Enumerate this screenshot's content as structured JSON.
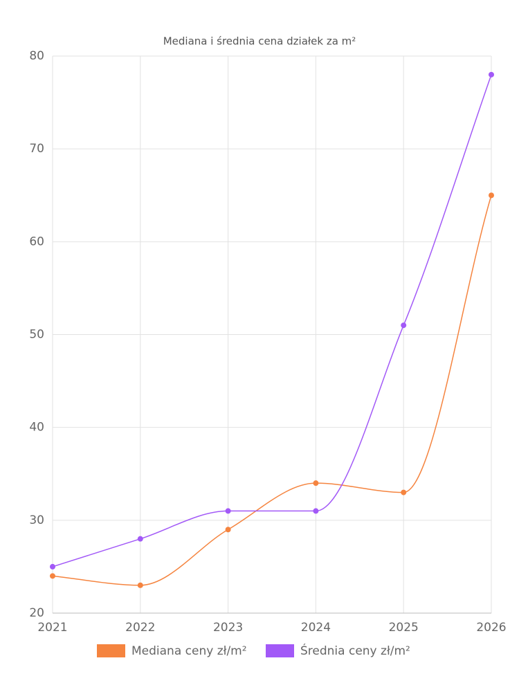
{
  "chart_data": {
    "type": "line",
    "title": "Mediana i średnia cena działek za m²",
    "categories": [
      "2021",
      "2022",
      "2023",
      "2024",
      "2025",
      "2026"
    ],
    "series": [
      {
        "name": "Mediana ceny zł/m²",
        "color": "#f5843f",
        "values": [
          24,
          23,
          29,
          34,
          33,
          65
        ]
      },
      {
        "name": "Średnia ceny zł/m²",
        "color": "#a259f7",
        "values": [
          25,
          28,
          31,
          31,
          51,
          78
        ]
      }
    ],
    "ylim": [
      20,
      80
    ],
    "yticks": [
      20,
      30,
      40,
      50,
      60,
      70,
      80
    ],
    "grid": true,
    "legend": "bottom"
  }
}
